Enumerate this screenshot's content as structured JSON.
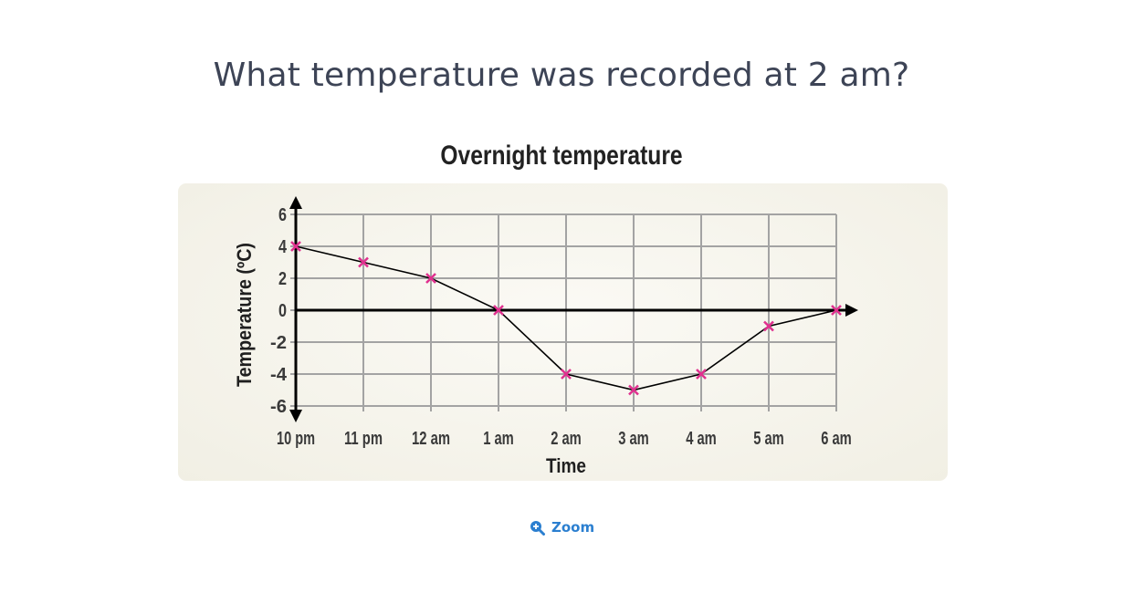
{
  "question": "What temperature was recorded at 2 am?",
  "zoom_label": "Zoom",
  "icons": {
    "zoom": "zoom-in-icon"
  },
  "colors": {
    "marker": "#e0318f",
    "link": "#2b7fd0"
  },
  "chart_data": {
    "type": "line",
    "title": "Overnight temperature",
    "xlabel": "Time",
    "ylabel": "Temperature (ºC)",
    "categories": [
      "10 pm",
      "11 pm",
      "12 am",
      "1 am",
      "2 am",
      "3 am",
      "4 am",
      "5 am",
      "6 am"
    ],
    "values": [
      4,
      3,
      2,
      0,
      -4,
      -5,
      -4,
      -1,
      0
    ],
    "ylim": [
      -6,
      6
    ],
    "yticks": [
      6,
      4,
      2,
      0,
      -2,
      -4,
      -6
    ],
    "ytick_labels": [
      "6",
      "4",
      "2",
      "0",
      "-2",
      "-4",
      "-6"
    ],
    "grid": true,
    "marker": "x"
  }
}
